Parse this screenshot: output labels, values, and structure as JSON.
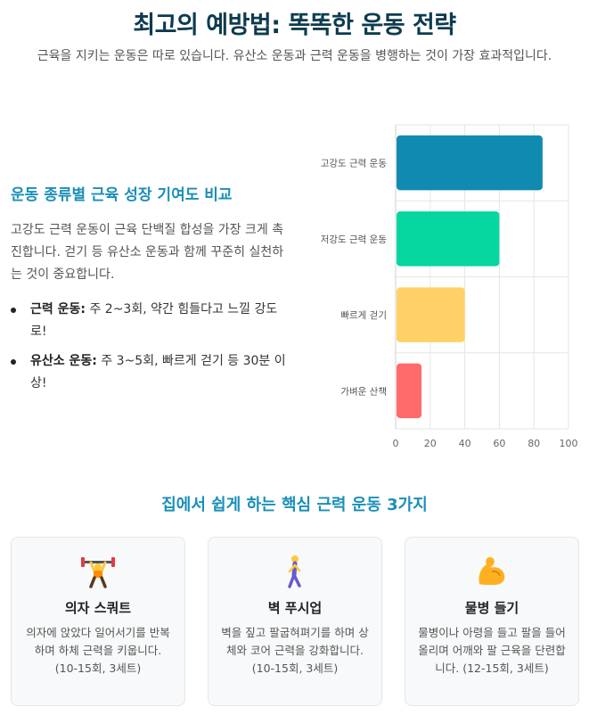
{
  "header": {
    "title": "최고의 예방법: 똑똑한 운동 전략",
    "subtitle": "근육을 지키는 운동은 따로 있습니다. 유산소 운동과 근력 운동을 병행하는 것이 가장 효과적입니다."
  },
  "comparison": {
    "heading": "운동 종류별 근육 성장 기여도 비교",
    "description": "고강도 근력 운동이 근육 단백질 합성을 가장 크게 촉진합니다. 걷기 등 유산소 운동과 함께 꾸준히 실천하는 것이 중요합니다.",
    "bullets": [
      {
        "label": "근력 운동:",
        "text": " 주 2~3회, 약간 힘들다고 느낄 강도로!"
      },
      {
        "label": "유산소 운동:",
        "text": " 주 3~5회, 빠르게 걷기 등 30분 이상!"
      }
    ]
  },
  "chart_data": {
    "type": "bar",
    "orientation": "horizontal",
    "categories": [
      "고강도 근력 운동",
      "저강도 근력 운동",
      "빠르게 걷기",
      "가벼운 산책"
    ],
    "values": [
      85,
      60,
      40,
      15
    ],
    "colors": [
      "#118ab2",
      "#06d6a0",
      "#ffd166",
      "#ff6b6b"
    ],
    "xlim": [
      0,
      100
    ],
    "xticks": [
      0,
      20,
      40,
      60,
      80,
      100
    ],
    "grid": true
  },
  "exercises": {
    "heading": "집에서 쉽게 하는 핵심 근력 운동 3가지",
    "cards": [
      {
        "icon": "weightlifter-icon",
        "title": "의자 스쿼트",
        "text": "의자에 앉았다 일어서기를 반복하며 하체 근력을 키웁니다. (10-15회, 3세트)"
      },
      {
        "icon": "walking-person-icon",
        "title": "벽 푸시업",
        "text": "벽을 짚고 팔굽혀펴기를 하며 상체와 코어 근력을 강화합니다. (10-15회, 3세트)"
      },
      {
        "icon": "flexed-biceps-icon",
        "title": "물병 들기",
        "text": "물병이나 아령을 들고 팔을 들어 올리며 어깨와 팔 근육을 단련합니다. (12-15회, 3세트)"
      }
    ]
  }
}
